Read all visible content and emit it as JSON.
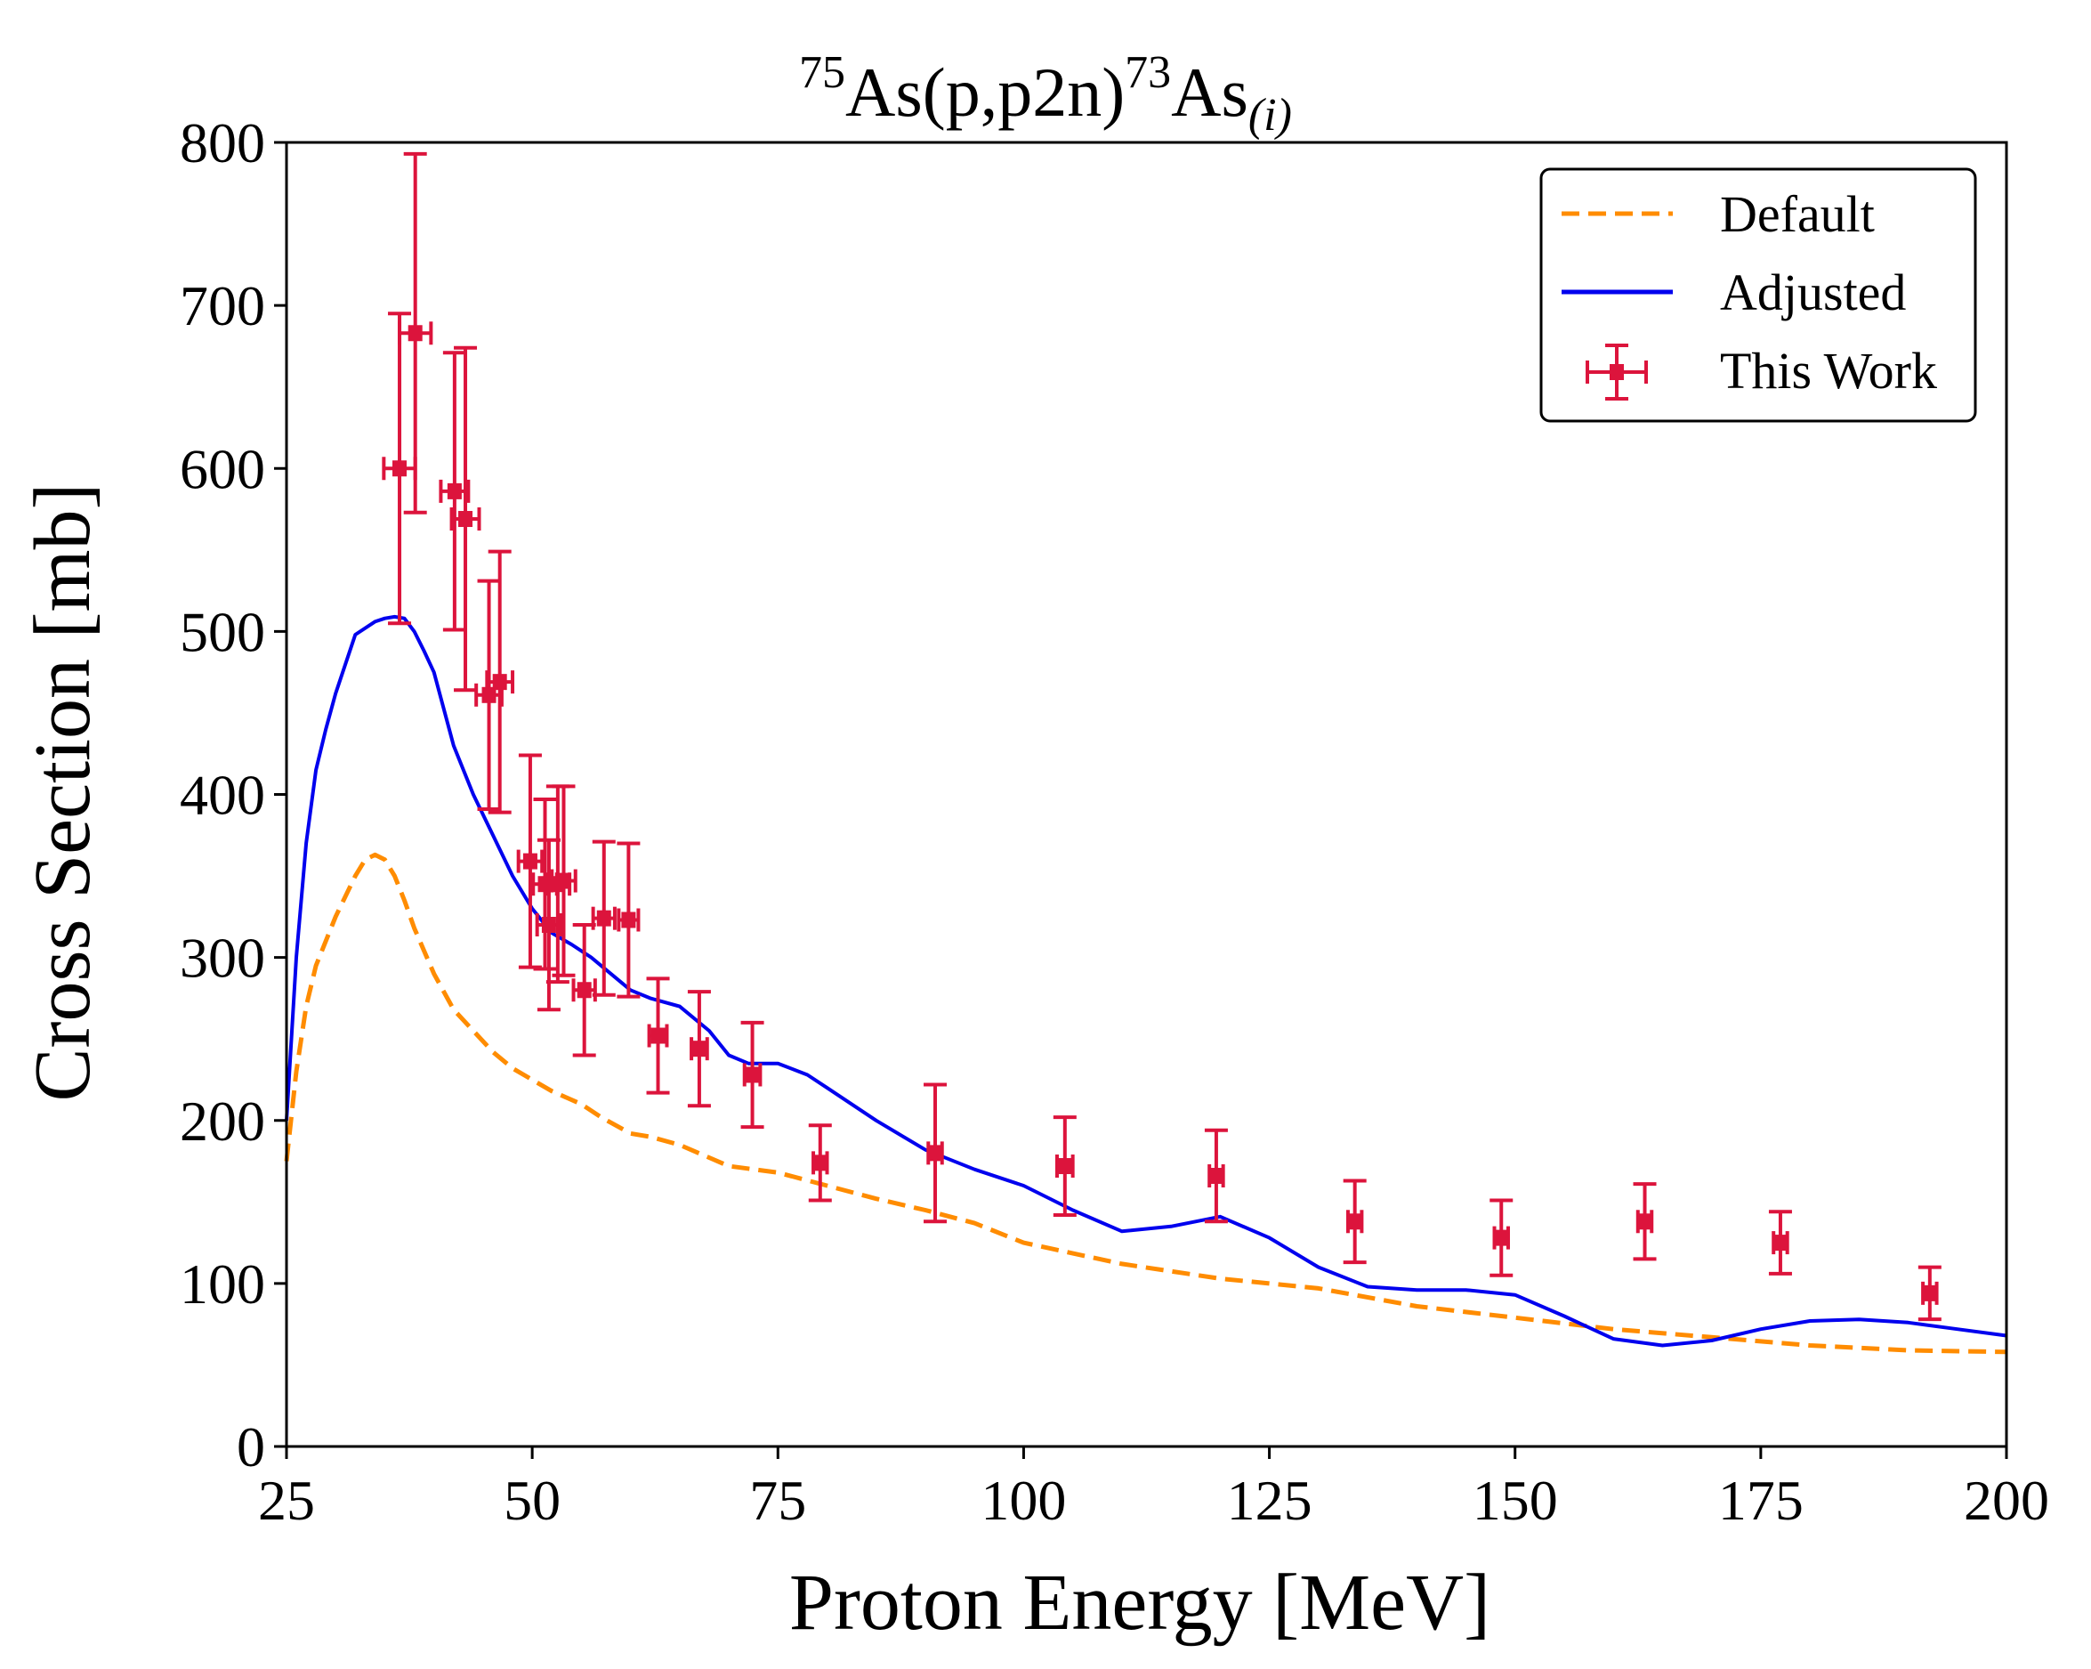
{
  "chart_data": {
    "type": "line",
    "title": {
      "pre_sup": "75",
      "main1": "As(p,p2n)",
      "mid_sup": "73",
      "main2": "As",
      "sub": "(i)"
    },
    "xlabel": "Proton Energy [MeV]",
    "ylabel": "Cross Section [mb]",
    "xlim": [
      25,
      200
    ],
    "ylim": [
      0,
      800
    ],
    "xticks": [
      25,
      50,
      75,
      100,
      125,
      150,
      175,
      200
    ],
    "yticks": [
      0,
      100,
      200,
      300,
      400,
      500,
      600,
      700,
      800
    ],
    "legend_position": "top-right",
    "colors": {
      "default": "#ff8c00",
      "adjusted": "#0000ee",
      "experiment": "#dc143c"
    },
    "series": [
      {
        "name": "Default",
        "style": "dashed",
        "x": [
          25,
          26,
          27,
          28,
          30,
          32,
          33,
          34,
          35,
          36,
          37,
          38,
          40,
          42,
          44,
          46,
          48,
          50,
          52,
          55,
          57,
          60,
          62,
          65,
          70,
          75,
          80,
          85,
          90,
          95,
          100,
          110,
          120,
          130,
          140,
          150,
          160,
          170,
          180,
          190,
          200
        ],
        "y": [
          175,
          230,
          270,
          295,
          325,
          350,
          360,
          363,
          360,
          350,
          335,
          318,
          290,
          268,
          255,
          242,
          232,
          225,
          218,
          210,
          202,
          192,
          190,
          185,
          172,
          168,
          160,
          152,
          145,
          137,
          125,
          112,
          103,
          97,
          86,
          79,
          72,
          67,
          62,
          59,
          58
        ]
      },
      {
        "name": "Adjusted",
        "style": "solid",
        "x": [
          25,
          26,
          27,
          28,
          29,
          30,
          32,
          34,
          35,
          36,
          37,
          38,
          39,
          40,
          42,
          44,
          46,
          48,
          50,
          52,
          54,
          56,
          58,
          60,
          62,
          65,
          68,
          70,
          72,
          75,
          78,
          80,
          85,
          90,
          95,
          100,
          105,
          110,
          115,
          120,
          125,
          130,
          135,
          140,
          145,
          150,
          155,
          160,
          165,
          170,
          175,
          180,
          185,
          190,
          195,
          200
        ],
        "y": [
          200,
          300,
          370,
          415,
          440,
          462,
          498,
          506,
          508,
          509,
          508,
          500,
          488,
          475,
          430,
          400,
          375,
          350,
          330,
          315,
          308,
          300,
          290,
          280,
          275,
          270,
          255,
          240,
          235,
          235,
          228,
          220,
          200,
          182,
          170,
          160,
          145,
          132,
          135,
          141,
          128,
          110,
          98,
          96,
          96,
          93,
          80,
          66,
          62,
          65,
          72,
          77,
          78,
          76,
          72,
          68
        ]
      }
    ],
    "experiment": {
      "name": "This Work",
      "points": [
        {
          "x": 36.5,
          "y": 600,
          "xerr": 1.6,
          "yerr": 95
        },
        {
          "x": 38.1,
          "y": 683,
          "xerr": 1.6,
          "yerr": 110
        },
        {
          "x": 42.1,
          "y": 586,
          "xerr": 1.4,
          "yerr": 85
        },
        {
          "x": 43.2,
          "y": 569,
          "xerr": 1.4,
          "yerr": 105
        },
        {
          "x": 45.6,
          "y": 461,
          "xerr": 1.3,
          "yerr": 70
        },
        {
          "x": 46.7,
          "y": 469,
          "xerr": 1.3,
          "yerr": 80
        },
        {
          "x": 49.8,
          "y": 359,
          "xerr": 1.2,
          "yerr": 65
        },
        {
          "x": 51.3,
          "y": 345,
          "xerr": 1.2,
          "yerr": 52
        },
        {
          "x": 51.7,
          "y": 320,
          "xerr": 1.2,
          "yerr": 52
        },
        {
          "x": 52.6,
          "y": 345,
          "xerr": 1.2,
          "yerr": 60
        },
        {
          "x": 53.2,
          "y": 347,
          "xerr": 1.2,
          "yerr": 58
        },
        {
          "x": 55.3,
          "y": 280,
          "xerr": 1.1,
          "yerr": 40
        },
        {
          "x": 57.3,
          "y": 324,
          "xerr": 1.1,
          "yerr": 47
        },
        {
          "x": 59.8,
          "y": 323,
          "xerr": 1.0,
          "yerr": 47
        },
        {
          "x": 62.8,
          "y": 252,
          "xerr": 0.9,
          "yerr": 35
        },
        {
          "x": 67.0,
          "y": 244,
          "xerr": 0.8,
          "yerr": 35
        },
        {
          "x": 72.4,
          "y": 228,
          "xerr": 0.8,
          "yerr": 32
        },
        {
          "x": 79.3,
          "y": 174,
          "xerr": 0.7,
          "yerr": 23
        },
        {
          "x": 91.0,
          "y": 180,
          "xerr": 0.7,
          "yerr": 42
        },
        {
          "x": 104.2,
          "y": 172,
          "xerr": 0.8,
          "yerr": 30
        },
        {
          "x": 119.6,
          "y": 166,
          "xerr": 0.7,
          "yerr": 28
        },
        {
          "x": 133.7,
          "y": 138,
          "xerr": 0.7,
          "yerr": 25
        },
        {
          "x": 148.6,
          "y": 128,
          "xerr": 0.7,
          "yerr": 23
        },
        {
          "x": 163.2,
          "y": 138,
          "xerr": 0.7,
          "yerr": 23
        },
        {
          "x": 177.0,
          "y": 125,
          "xerr": 0.7,
          "yerr": 19
        },
        {
          "x": 192.2,
          "y": 94,
          "xerr": 0.7,
          "yerr": 16
        }
      ]
    }
  }
}
